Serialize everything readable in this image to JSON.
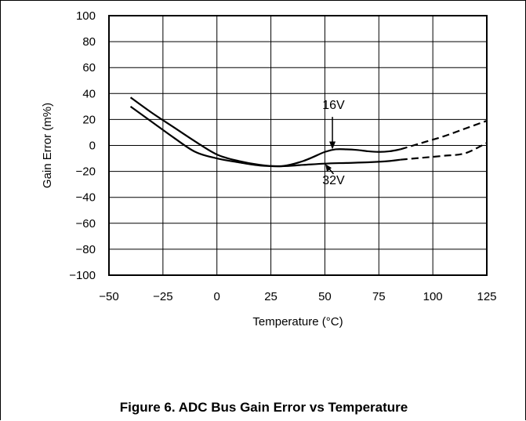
{
  "chart_data": {
    "type": "line",
    "title": "Figure 6. ADC Bus Gain Error vs Temperature",
    "xlabel": "Temperature (°C)",
    "ylabel": "Gain Error (m%)",
    "xlim": [
      -50,
      125
    ],
    "ylim": [
      -100,
      100
    ],
    "x_ticks": [
      "−50",
      "−25",
      "0",
      "25",
      "50",
      "75",
      "100",
      "125"
    ],
    "y_ticks": [
      "100",
      "80",
      "60",
      "40",
      "20",
      "0",
      "−20",
      "−40",
      "−60",
      "−80",
      "−100"
    ],
    "x_tick_values": [
      -50,
      -25,
      0,
      25,
      50,
      75,
      100,
      125
    ],
    "y_tick_values": [
      100,
      80,
      60,
      40,
      20,
      0,
      -20,
      -40,
      -60,
      -80,
      -100
    ],
    "grid": true,
    "series": [
      {
        "name": "16V",
        "x": [
          -40,
          -30,
          -20,
          -10,
          0,
          10,
          20,
          30,
          40,
          50,
          55,
          60,
          65,
          70,
          75,
          80,
          85
        ],
        "y": [
          37,
          25,
          14,
          3,
          -7,
          -12,
          -15,
          -16,
          -12,
          -5,
          -3,
          -3,
          -3.5,
          -4.5,
          -5,
          -4.5,
          -3
        ],
        "extrapolated": {
          "x": [
            85,
            95,
            105,
            115,
            125
          ],
          "y": [
            -3,
            2,
            7,
            13,
            19
          ]
        }
      },
      {
        "name": "32V",
        "x": [
          -40,
          -30,
          -20,
          -10,
          0,
          10,
          20,
          30,
          40,
          50,
          60,
          70,
          80,
          85
        ],
        "y": [
          30,
          18,
          6,
          -5,
          -10,
          -13,
          -15.5,
          -16,
          -15,
          -14,
          -13.5,
          -13,
          -12,
          -11
        ],
        "extrapolated": {
          "x": [
            85,
            95,
            105,
            115,
            125
          ],
          "y": [
            -11,
            -9.5,
            -8,
            -6,
            2
          ]
        }
      }
    ],
    "annotations": [
      "16V",
      "32V"
    ]
  }
}
